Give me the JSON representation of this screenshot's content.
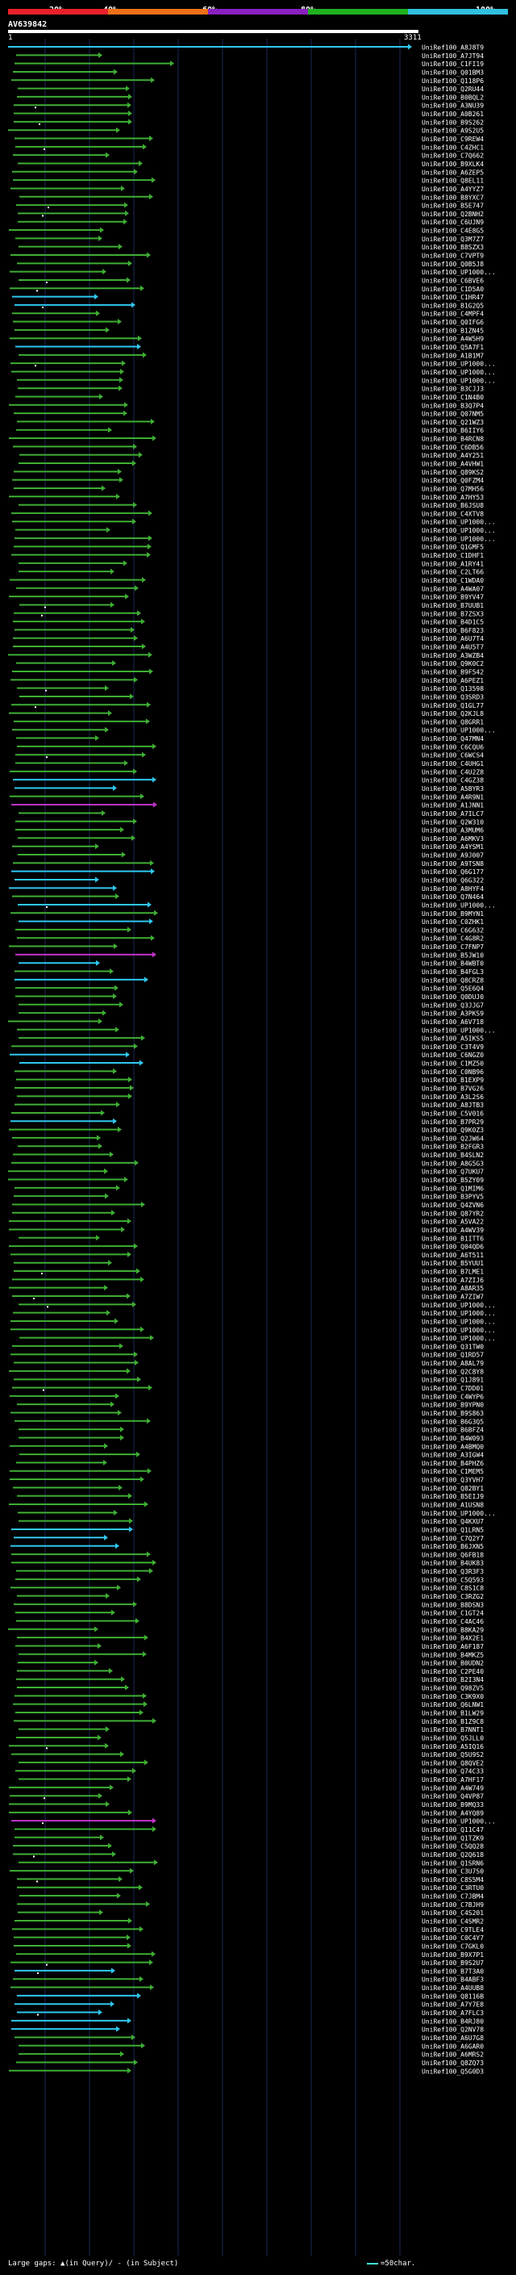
{
  "query": {
    "name": "AV639842",
    "start": "1",
    "end": "3311",
    "length": 3311
  },
  "scale": {
    "labels": [
      "20%",
      "40%",
      "60%",
      "80%",
      "100%"
    ],
    "colors": [
      "#e8202a",
      "#f07018",
      "#8a20c0",
      "#20b020",
      "#30c0e0"
    ]
  },
  "legend": {
    "gaps_text": "Large gaps: ▲(in Query)/ - (in Subject)",
    "scale_text": "=50char."
  },
  "hits": {
    "colors": {
      "green": "#3fae34",
      "cyan": "#30c8f0",
      "magenta": "#c034c8",
      "white": "#ffffff"
    },
    "names": [
      "UniRef100_A8J8T9",
      "UniRef100_A7JT94",
      "UniRef100_C1FI19",
      "UniRef100_Q01BM3",
      "UniRef100_Q118P6",
      "UniRef100_Q2RU44",
      "UniRef100_B0BQL2",
      "UniRef100_A3NU39",
      "UniRef100_A0B261",
      "UniRef100_B9S262",
      "UniRef100_A9S2U5",
      "UniRef100_C9REW4",
      "UniRef100_C4ZHC1",
      "UniRef100_C7Q662",
      "UniRef100_B9XLK4",
      "UniRef100_A6ZEP5",
      "UniRef100_Q8EL11",
      "UniRef100_A4YYZ7",
      "UniRef100_B8YXC7",
      "UniRef100_B5E747",
      "UniRef100_Q2BNH2",
      "UniRef100_C6UJN9",
      "UniRef100_C4E8G5",
      "UniRef100_Q3M7Z7",
      "UniRef100_B8SZX3",
      "UniRef100_C7VPT9",
      "UniRef100_Q0B5J8",
      "UniRef100_UP1000...",
      "UniRef100_C6BVE6",
      "UniRef100_C1D5A0",
      "UniRef100_C1HR47",
      "UniRef100_B1G2Q5",
      "UniRef100_C4MPF4",
      "UniRef100_Q0IFG6",
      "UniRef100_B1ZN45",
      "UniRef100_A4W5H9",
      "UniRef100_Q5A7F1",
      "UniRef100_A1B1M7",
      "UniRef100_UP1000...",
      "UniRef100_UP1000...",
      "UniRef100_UP1000...",
      "UniRef100_B3CJJ3",
      "UniRef100_C1N4B0",
      "UniRef100_B3Q7P4",
      "UniRef100_Q07NM5",
      "UniRef100_Q21WZ3",
      "UniRef100_B6IIY6",
      "UniRef100_B4RCN8",
      "UniRef100_C6DB56",
      "UniRef100_A4Y251",
      "UniRef100_A4VHW1",
      "UniRef100_Q89KS2",
      "UniRef100_Q0FZM4",
      "UniRef100_Q7MH56",
      "UniRef100_A7HY53",
      "UniRef100_B6JSU8",
      "UniRef100_C4XTV8",
      "UniRef100_UP1000...",
      "UniRef100_UP1000...",
      "UniRef100_UP1000...",
      "UniRef100_Q1GMF5",
      "UniRef100_C1DHF1",
      "UniRef100_A1RY41",
      "UniRef100_C2LT66",
      "UniRef100_C1WDA0",
      "UniRef100_A4WA07",
      "UniRef100_B9YV47",
      "UniRef100_B7UUB1",
      "UniRef100_B7ZSX3",
      "UniRef100_B4D1C5",
      "UniRef100_B6F823",
      "UniRef100_A6U7T4",
      "UniRef100_A4U5T7",
      "UniRef100_A3WZB4",
      "UniRef100_Q9K0C2",
      "UniRef100_B9F542",
      "UniRef100_A6PEZ1",
      "UniRef100_Q13598",
      "UniRef100_Q3SRD3",
      "UniRef100_Q1GL77",
      "UniRef100_Q2KJL8",
      "UniRef100_Q8GRR1",
      "UniRef100_UP1000...",
      "UniRef100_Q47MN4",
      "UniRef100_C6CQU6",
      "UniRef100_C6WCS4",
      "UniRef100_C4UHG1",
      "UniRef100_C4U2Z8",
      "UniRef100_C4GZ38",
      "UniRef100_A5BYR3",
      "UniRef100_A4R9N1",
      "UniRef100_A1JNN1",
      "UniRef100_A7ILC7",
      "UniRef100_Q2W310",
      "UniRef100_A3MUM6",
      "UniRef100_A6MKV3",
      "UniRef100_A4YSM1",
      "UniRef100_A9J007",
      "UniRef100_A9TSN8",
      "UniRef100_Q6G177",
      "UniRef100_Q6G322",
      "UniRef100_A8HYF4",
      "UniRef100_Q7N464",
      "UniRef100_UP1000...",
      "UniRef100_B9MYN1",
      "UniRef100_C0ZHK1",
      "UniRef100_C6G632",
      "UniRef100_C4G8R2",
      "UniRef100_C7FNP7",
      "UniRef100_B5JW10",
      "UniRef100_B4WBT0",
      "UniRef100_B4FGL3",
      "UniRef100_Q8CRZ8",
      "UniRef100_Q5E6Q4",
      "UniRef100_Q0DUJ0",
      "UniRef100_Q3JJG7",
      "UniRef100_A3PKS9",
      "UniRef100_A6V718",
      "UniRef100_UP1000...",
      "UniRef100_A5IKS5",
      "UniRef100_C3T4V9",
      "UniRef100_C6NGZ0",
      "UniRef100_C1MZ50",
      "UniRef100_C0NB96",
      "UniRef100_B1EXP9",
      "UniRef100_B7VG26",
      "UniRef100_A3L2S6",
      "UniRef100_A8JTB3",
      "UniRef100_C5V016",
      "UniRef100_B7PR29",
      "UniRef100_Q9K0Z3",
      "UniRef100_Q2JW64",
      "UniRef100_B2FGR3",
      "UniRef100_B4SLN2",
      "UniRef100_A8G5G3",
      "UniRef100_Q7UKU7",
      "UniRef100_B5ZY09",
      "UniRef100_Q1MIM6",
      "UniRef100_B3PYV5",
      "UniRef100_Q4ZVN6",
      "UniRef100_Q87YR2",
      "UniRef100_A5VA22",
      "UniRef100_A4WV39",
      "UniRef100_B1ITT6",
      "UniRef100_Q04QD6",
      "UniRef100_A6T511",
      "UniRef100_B5YUU1",
      "UniRef100_B7LME1",
      "UniRef100_A7ZIJ6",
      "UniRef100_A8AR35",
      "UniRef100_A7ZIW7",
      "UniRef100_UP1000...",
      "UniRef100_UP1000...",
      "UniRef100_UP1000...",
      "UniRef100_UP1000...",
      "UniRef100_UP1000...",
      "UniRef100_Q31TW0",
      "UniRef100_Q1RD57",
      "UniRef100_A8AL79",
      "UniRef100_Q2C8Y8",
      "UniRef100_Q1J891",
      "UniRef100_C7DD01",
      "UniRef100_C4WYP6",
      "UniRef100_B9YPN0",
      "UniRef100_B9S863",
      "UniRef100_B6G3Q5",
      "UniRef100_B6BFZ4",
      "UniRef100_B4W093",
      "UniRef100_A4BMQ0",
      "UniRef100_A3IGW4",
      "UniRef100_B4PHZ6",
      "UniRef100_C1MEM5",
      "UniRef100_Q3YVH7",
      "UniRef100_Q82BY1",
      "UniRef100_B5EIJ9",
      "UniRef100_A1USN8",
      "UniRef100_UP1000...",
      "UniRef100_Q4KXU7",
      "UniRef100_Q1LRN5",
      "UniRef100_C7Q2Y7",
      "UniRef100_B6JXN5",
      "UniRef100_Q6FB18",
      "UniRef100_B4UK83",
      "UniRef100_Q3R3F3",
      "UniRef100_C5Q593",
      "UniRef100_C8S1C8",
      "UniRef100_C3RZG2",
      "UniRef100_B8DSN3",
      "UniRef100_C1GT24",
      "UniRef100_C4AC46",
      "UniRef100_B8KA29",
      "UniRef100_B4X2E1",
      "UniRef100_A6F187",
      "UniRef100_B4MKZ5",
      "UniRef100_B0UDN2",
      "UniRef100_C2PE40",
      "UniRef100_B2I3N4",
      "UniRef100_Q98ZV5",
      "UniRef100_C3K9X0",
      "UniRef100_Q6LNW1",
      "UniRef100_B1LW29",
      "UniRef100_B1Z9C8",
      "UniRef100_B7NNT1",
      "UniRef100_Q5JLL0",
      "UniRef100_A5IQ16",
      "UniRef100_Q5U9S2",
      "UniRef100_Q8QVE2",
      "UniRef100_Q74C33",
      "UniRef100_A7HF17",
      "UniRef100_A4W749",
      "UniRef100_Q4VP87",
      "UniRef100_B9MQ33",
      "UniRef100_A4YQ89",
      "UniRef100_UP1000...",
      "UniRef100_Q11C47",
      "UniRef100_Q1TZK9",
      "UniRef100_C5QQ28",
      "UniRef100_Q2Q618",
      "UniRef100_Q1SRN6",
      "UniRef100_C3U7S0",
      "UniRef100_C8S5M4",
      "UniRef100_C3RTU0",
      "UniRef100_C7JBM4",
      "UniRef100_C7BJH9",
      "UniRef100_C4S201",
      "UniRef100_C4SMR2",
      "UniRef100_C9TLE4",
      "UniRef100_C0C4Y7",
      "UniRef100_C7GKL0",
      "UniRef100_B9X7P1",
      "UniRef100_B9S2U7",
      "UniRef100_B7T3A0",
      "UniRef100_B4ABF3",
      "UniRef100_A4UUB8",
      "UniRef100_Q8116B",
      "UniRef100_A7Y7E8",
      "UniRef100_A7FLC3",
      "UniRef100_B4RJ80",
      "UniRef100_Q2NV78",
      "UniRef100_A6U7G8",
      "UniRef100_A6GAR0",
      "UniRef100_A6MRS2",
      "UniRef100_Q8ZQ73",
      "UniRef100_Q5G0D3"
    ]
  }
}
